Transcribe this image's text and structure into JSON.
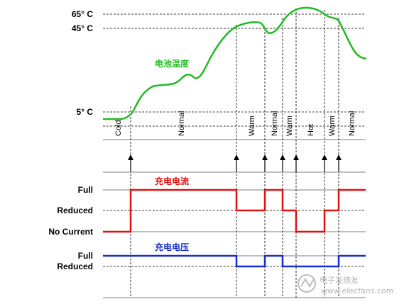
{
  "temperature": {
    "title": "电池温度",
    "color": "#22bb22",
    "thresholds": [
      "65° C",
      "45° C",
      "5° C"
    ]
  },
  "zones": [
    "Cold",
    "Normal",
    "Warm",
    "Normal",
    "Warm",
    "Hot",
    "Warm",
    "Normal"
  ],
  "current": {
    "title": "充电电流",
    "color": "#e01010",
    "levels": [
      "Full",
      "Reduced",
      "No Current"
    ]
  },
  "voltage": {
    "title": "充电电压",
    "color": "#1530c8",
    "levels": [
      "Full",
      "Reduced"
    ]
  },
  "watermark": {
    "text": "电子发烧友",
    "url": "www.elecfans.com"
  }
}
